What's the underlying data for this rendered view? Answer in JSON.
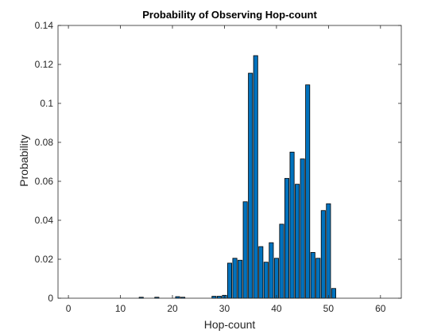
{
  "chart_data": {
    "type": "bar",
    "title": "Probability of Observing Hop-count",
    "xlabel": "Hop-count",
    "ylabel": "Probability",
    "xlim": [
      -2,
      64
    ],
    "ylim": [
      0,
      0.14
    ],
    "xticks": [
      0,
      10,
      20,
      30,
      40,
      50,
      60
    ],
    "xtick_labels": [
      "0",
      "10",
      "20",
      "30",
      "40",
      "50",
      "60"
    ],
    "yticks": [
      0,
      0.02,
      0.04,
      0.06,
      0.08,
      0.1,
      0.12,
      0.14
    ],
    "ytick_labels": [
      "0",
      "0.02",
      "0.04",
      "0.06",
      "0.08",
      "0.1",
      "0.12",
      "0.14"
    ],
    "grid": false,
    "bar_color": "#0072BD",
    "bar_edge_color": "#000000",
    "x": [
      14,
      17,
      21,
      22,
      28,
      29,
      30,
      31,
      32,
      33,
      34,
      35,
      36,
      37,
      38,
      39,
      40,
      41,
      42,
      43,
      44,
      45,
      46,
      47,
      48,
      49,
      50,
      51
    ],
    "values": [
      0.0005,
      0.0005,
      0.0008,
      0.0005,
      0.001,
      0.001,
      0.0015,
      0.018,
      0.0205,
      0.0195,
      0.0495,
      0.1155,
      0.1245,
      0.0265,
      0.0185,
      0.0285,
      0.0205,
      0.038,
      0.0615,
      0.075,
      0.0585,
      0.0715,
      0.1095,
      0.0235,
      0.0205,
      0.045,
      0.0485,
      0.005
    ]
  }
}
